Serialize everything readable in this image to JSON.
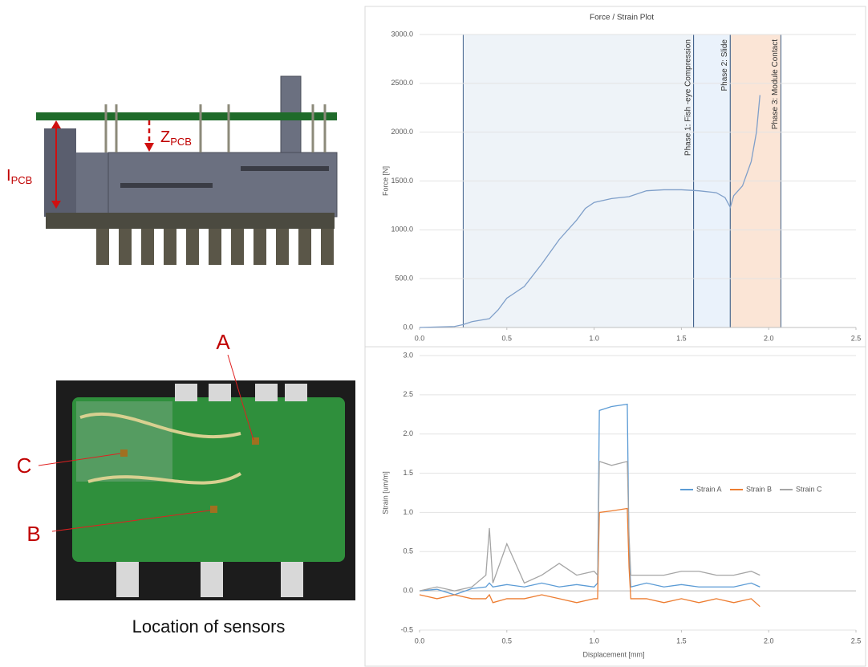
{
  "figure": {
    "diagram": {
      "height_label": {
        "main": "I",
        "sub": "PCB"
      },
      "travel_label": {
        "main": "Z",
        "sub": "PCB"
      }
    },
    "photo": {
      "sensors": [
        "A",
        "B",
        "C"
      ]
    },
    "caption": "Location of sensors"
  },
  "chart_data": [
    {
      "type": "line",
      "title": "Force / Strain Plot",
      "ylabel": "Force [N]",
      "color": "#7f9fc9",
      "grid": true,
      "x": [
        0,
        0.2,
        0.25,
        0.3,
        0.4,
        0.45,
        0.5,
        0.6,
        0.7,
        0.8,
        0.9,
        0.95,
        1.0,
        1.1,
        1.2,
        1.3,
        1.4,
        1.5,
        1.6,
        1.7,
        1.75,
        1.78,
        1.8,
        1.85,
        1.9,
        1.93,
        1.95
      ],
      "values": [
        0,
        10,
        30,
        60,
        90,
        180,
        300,
        420,
        650,
        900,
        1100,
        1220,
        1280,
        1320,
        1340,
        1400,
        1410,
        1410,
        1400,
        1380,
        1330,
        1230,
        1350,
        1450,
        1700,
        2000,
        2380
      ],
      "phases": [
        {
          "label": "Phase 1: Fish -eye Compression",
          "start": 0.25,
          "end": 1.57,
          "color": "#eef3f8"
        },
        {
          "label": "Phase 2: Slide",
          "start": 1.57,
          "end": 1.78,
          "color": "#eaf2fb"
        },
        {
          "label": "Phase 3: Module Contact",
          "start": 1.78,
          "end": 2.07,
          "color": "#fbe5d6"
        }
      ],
      "xlim": [
        0,
        2.5
      ],
      "xticks": [
        {
          "value": 0,
          "label": "0.0"
        },
        0.5,
        {
          "value": 1,
          "label": "1.0"
        },
        1.5,
        {
          "value": 2,
          "label": "2.0"
        },
        2.5
      ],
      "ylim": [
        0,
        3000
      ],
      "yticks": [
        {
          "value": 0,
          "label": "0.0"
        },
        {
          "value": 500,
          "label": "500.0"
        },
        {
          "value": 1000,
          "label": "1000.0"
        },
        {
          "value": 1500,
          "label": "1500.0"
        },
        {
          "value": 2000,
          "label": "2000.0"
        },
        {
          "value": 2500,
          "label": "2500.0"
        },
        {
          "value": 3000,
          "label": "3000.0"
        }
      ]
    },
    {
      "type": "line",
      "xlabel": "Displacement [mm]",
      "ylabel": "Strain [um/m]",
      "grid": true,
      "legend": "right",
      "x": [
        0,
        0.1,
        0.2,
        0.3,
        0.38,
        0.4,
        0.42,
        0.5,
        0.6,
        0.7,
        0.8,
        0.9,
        1.0,
        1.02,
        1.03,
        1.1,
        1.19,
        1.2,
        1.21,
        1.3,
        1.4,
        1.5,
        1.6,
        1.7,
        1.8,
        1.9,
        1.95
      ],
      "series": [
        {
          "name": "Strain A",
          "color": "#5b9bd5",
          "values": [
            0,
            0.02,
            -0.05,
            0.03,
            0.05,
            0.1,
            0.05,
            0.08,
            0.05,
            0.1,
            0.05,
            0.08,
            0.05,
            0.1,
            2.3,
            2.35,
            2.38,
            0.5,
            0.05,
            0.1,
            0.05,
            0.08,
            0.05,
            0.05,
            0.05,
            0.1,
            0.05
          ]
        },
        {
          "name": "Strain B",
          "color": "#ed7d31",
          "values": [
            -0.05,
            -0.1,
            -0.05,
            -0.1,
            -0.1,
            -0.05,
            -0.15,
            -0.1,
            -0.1,
            -0.05,
            -0.1,
            -0.15,
            -0.1,
            -0.1,
            1.0,
            1.02,
            1.05,
            0.3,
            -0.1,
            -0.1,
            -0.15,
            -0.1,
            -0.15,
            -0.1,
            -0.15,
            -0.1,
            -0.2
          ]
        },
        {
          "name": "Strain C",
          "color": "#a5a5a5",
          "values": [
            0,
            0.05,
            0,
            0.05,
            0.2,
            0.8,
            0.1,
            0.6,
            0.1,
            0.2,
            0.35,
            0.2,
            0.25,
            0.2,
            1.65,
            1.6,
            1.65,
            0.7,
            0.2,
            0.2,
            0.2,
            0.25,
            0.25,
            0.2,
            0.2,
            0.25,
            0.2
          ]
        }
      ],
      "xlim": [
        0,
        2.5
      ],
      "xticks": [
        {
          "value": 0,
          "label": "0.0"
        },
        0.5,
        {
          "value": 1,
          "label": "1.0"
        },
        1.5,
        {
          "value": 2,
          "label": "2.0"
        },
        2.5
      ],
      "ylim": [
        -0.5,
        3
      ],
      "yticks": [
        -0.5,
        {
          "value": 0,
          "label": "0.0"
        },
        0.5,
        {
          "value": 1,
          "label": "1.0"
        },
        1.5,
        {
          "value": 2,
          "label": "2.0"
        },
        2.5,
        {
          "value": 3,
          "label": "3.0"
        }
      ]
    }
  ]
}
